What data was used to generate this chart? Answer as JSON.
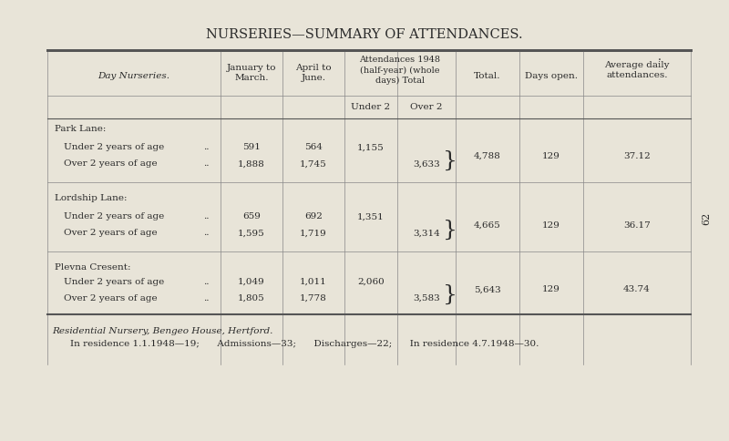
{
  "title": "NURSERIES—SUMMARY OF ATTENDANCES.",
  "background_color": "#e8e4d8",
  "title_fontsize": 10.5,
  "col_headers": [
    "Day Nurseries.",
    "January to\nMarch.",
    "April to\nJune.",
    "Attendances 1948\n(half-year) (whole\ndays) Total",
    "",
    "Total.",
    "Days open.",
    "Average daily\nattendances."
  ],
  "sub_headers": [
    "Under 2",
    "Over 2"
  ],
  "page_number": "62",
  "nurseries": [
    {
      "name": "Park Lane:",
      "rows": [
        {
          "label": "Under 2 years of age",
          "dots": "..",
          "jan_mar": "591",
          "apr_jun": "564",
          "under2": "1,155",
          "over2": "",
          "total": "4,788",
          "days_open": "129",
          "avg_daily": "37.12"
        },
        {
          "label": "Over 2 years of age ..",
          "dots": "..",
          "jan_mar": "1,888",
          "apr_jun": "1,745",
          "under2": "",
          "over2": "3,633",
          "total": "",
          "days_open": "",
          "avg_daily": ""
        }
      ]
    },
    {
      "name": "Lordship Lane:",
      "rows": [
        {
          "label": "Under 2 years of age",
          "dots": "..",
          "jan_mar": "659",
          "apr_jun": "692",
          "under2": "1,351",
          "over2": "",
          "total": "4,665",
          "days_open": "129",
          "avg_daily": "36.17"
        },
        {
          "label": "Over 2 years of age ..",
          "dots": "..",
          "jan_mar": "1,595",
          "apr_jun": "1,719",
          "under2": "",
          "over2": "3,314",
          "total": "",
          "days_open": "",
          "avg_daily": ""
        }
      ]
    },
    {
      "name": "Plevna Cresent:",
      "rows": [
        {
          "label": "Under 2 years of age",
          "dots": "..",
          "jan_mar": "1,049",
          "apr_jun": "1,011",
          "under2": "2,060",
          "over2": "",
          "total": "5,643",
          "days_open": "129",
          "avg_daily": "43.74"
        },
        {
          "label": "Over 2 years of age ..",
          "dots": "..",
          "jan_mar": "1,805",
          "apr_jun": "1,778",
          "under2": "",
          "over2": "3,583",
          "total": "",
          "days_open": "",
          "avg_daily": ""
        }
      ]
    }
  ],
  "footer_line1": "Residential Nursery, Bengeo House, Hertford.",
  "footer_line2": "In residence 1.1.1948—19;      Admissions—33;      Discharges—22;      In residence 4.7.1948—30."
}
